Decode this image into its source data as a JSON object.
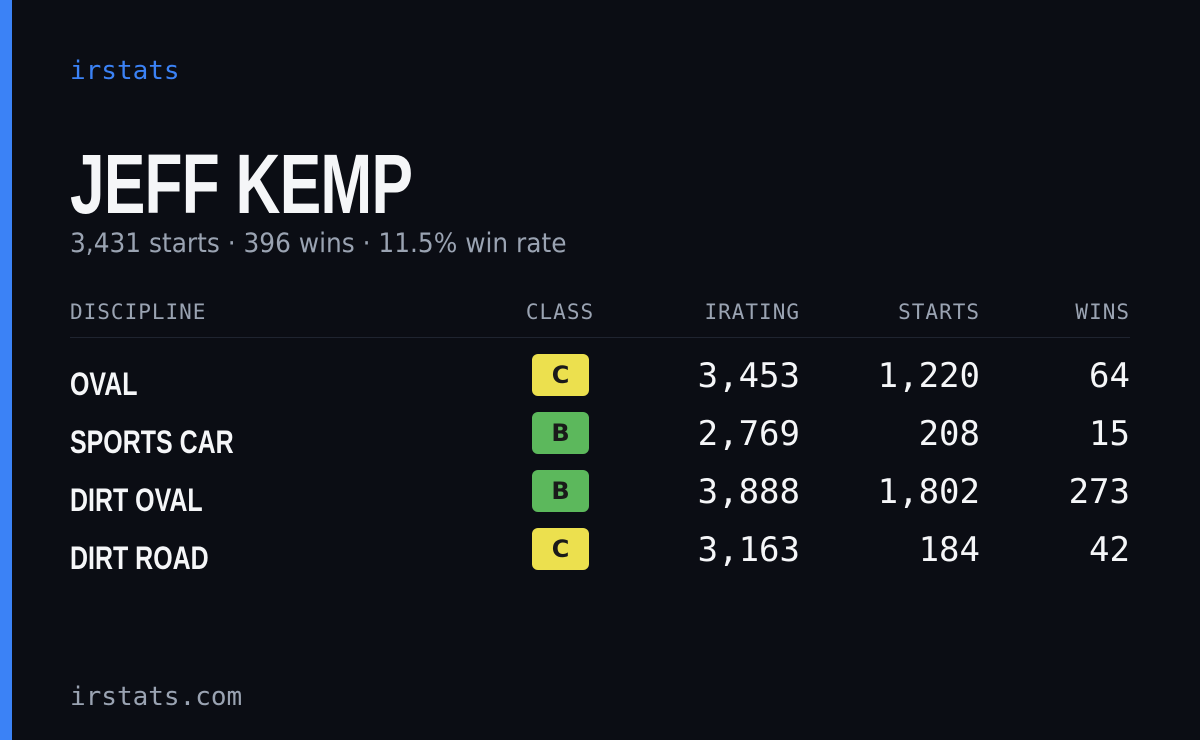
{
  "brand": "irstats",
  "title": "JEFF KEMP",
  "subtitle": "3,431 starts · 396 wins · 11.5% win rate",
  "table": {
    "headers": [
      "DISCIPLINE",
      "CLASS",
      "IRATING",
      "STARTS",
      "WINS"
    ],
    "rows": [
      {
        "discipline": "OVAL",
        "class": {
          "label": "C",
          "color": "#ece04e"
        },
        "irating": "3,453",
        "starts": "1,220",
        "wins": "64"
      },
      {
        "discipline": "SPORTS CAR",
        "class": {
          "label": "B",
          "color": "#5cb85c"
        },
        "irating": "2,769",
        "starts": "208",
        "wins": "15"
      },
      {
        "discipline": "DIRT OVAL",
        "class": {
          "label": "B",
          "color": "#5cb85c"
        },
        "irating": "3,888",
        "starts": "1,802",
        "wins": "273"
      },
      {
        "discipline": "DIRT ROAD",
        "class": {
          "label": "C",
          "color": "#ece04e"
        },
        "irating": "3,163",
        "starts": "184",
        "wins": "42"
      }
    ]
  },
  "footer": "irstats.com"
}
